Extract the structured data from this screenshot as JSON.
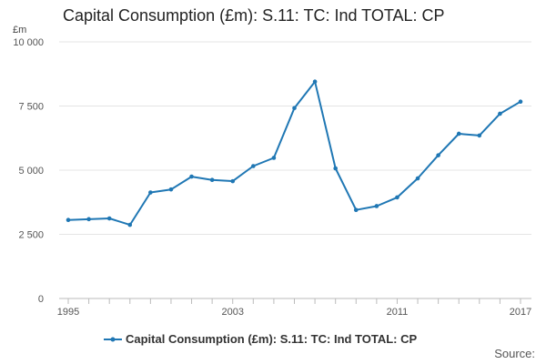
{
  "chart_data": {
    "type": "line",
    "title": "Capital Consumption (£m): S.11: TC: Ind TOTAL: CP",
    "ylabel": "£m",
    "x": [
      1995,
      1996,
      1997,
      1998,
      1999,
      2000,
      2001,
      2002,
      2003,
      2004,
      2005,
      2006,
      2007,
      2008,
      2009,
      2010,
      2011,
      2012,
      2013,
      2014,
      2015,
      2016,
      2017
    ],
    "series": [
      {
        "name": "Capital Consumption (£m): S.11: TC: Ind TOTAL: CP",
        "values": [
          3060,
          3090,
          3120,
          2870,
          4130,
          4250,
          4750,
          4620,
          4570,
          5160,
          5480,
          7420,
          8450,
          5070,
          3450,
          3600,
          3940,
          4680,
          5580,
          6420,
          6350,
          7200,
          7670
        ]
      }
    ],
    "ylim": [
      0,
      10000
    ],
    "yticks": [
      0,
      2500,
      5000,
      7500,
      10000
    ],
    "ytick_labels": [
      "0",
      "2 500",
      "5 000",
      "7 500",
      "10 000"
    ],
    "xtick_labels": [
      "1995",
      "2003",
      "2011",
      "2017"
    ],
    "grid": "horizontal",
    "legend_position": "bottom",
    "line_color": "#1f77b4",
    "source_label": "Source:"
  }
}
